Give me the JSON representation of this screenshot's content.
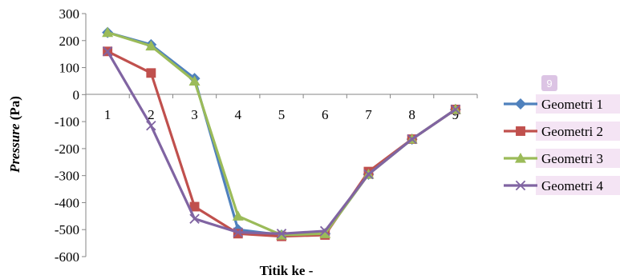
{
  "chart_data": {
    "type": "line",
    "categories": [
      "1",
      "2",
      "3",
      "4",
      "5",
      "6",
      "7",
      "8",
      "9"
    ],
    "series": [
      {
        "name": "Geometri 1",
        "color": "#4f81bd",
        "marker": "diamond",
        "values": [
          230,
          185,
          60,
          -500,
          -520,
          -515,
          -295,
          -165,
          -55
        ]
      },
      {
        "name": "Geometri 2",
        "color": "#c0504d",
        "marker": "square",
        "values": [
          160,
          80,
          -415,
          -515,
          -525,
          -520,
          -285,
          -165,
          -55
        ]
      },
      {
        "name": "Geometri 3",
        "color": "#9bbb59",
        "marker": "triangle",
        "values": [
          230,
          180,
          50,
          -450,
          -520,
          -515,
          -295,
          -165,
          -55
        ]
      },
      {
        "name": "Geometri 4",
        "color": "#8064a2",
        "marker": "x",
        "values": [
          160,
          -115,
          -460,
          -510,
          -515,
          -505,
          -295,
          -165,
          -55
        ]
      }
    ],
    "ylabel_italic": "Pressure",
    "ylabel_rest": " (Pa)",
    "xlabel": "Titik ke -",
    "ylim": [
      -600,
      300
    ],
    "yticks": [
      "300",
      "200",
      "100",
      "0",
      "-100",
      "-200",
      "-300",
      "-400",
      "-500",
      "-600"
    ],
    "grid": false,
    "legend_position": "right",
    "legend_badge": "9"
  }
}
